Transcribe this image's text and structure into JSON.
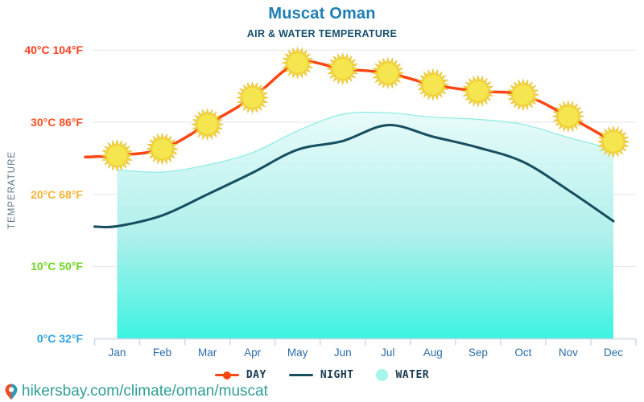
{
  "header": {
    "title": "Muscat Oman",
    "subtitle": "AIR & WATER TEMPERATURE",
    "title_color": "#1E7DB4",
    "subtitle_color": "#17506E"
  },
  "y_axis": {
    "title": "TEMPERATURE",
    "ticks": [
      {
        "label": "40°C 104°F",
        "value": 40,
        "color": "#FB3E1D"
      },
      {
        "label": "30°C 86°F",
        "value": 30,
        "color": "#FB5226"
      },
      {
        "label": "20°C 68°F",
        "value": 20,
        "color": "#F8B435"
      },
      {
        "label": "10°C 50°F",
        "value": 10,
        "color": "#70D51F"
      },
      {
        "label": "0°C 32°F",
        "value": 0,
        "color": "#2FA3E0"
      }
    ]
  },
  "chart_data": {
    "type": "line",
    "title": "Muscat Oman",
    "subtitle": "AIR & WATER TEMPERATURE",
    "ylabel": "TEMPERATURE",
    "ylim": [
      0,
      42
    ],
    "grid": "horizontal",
    "gridline_values": [
      10,
      20,
      30,
      40
    ],
    "legend_position": "bottom",
    "categories": [
      "Jan",
      "Feb",
      "Mar",
      "Apr",
      "May",
      "Jun",
      "Jul",
      "Aug",
      "Sep",
      "Oct",
      "Nov",
      "Dec"
    ],
    "series": [
      {
        "name": "DAY",
        "type": "line",
        "marker": "sun",
        "color": "#FB4713",
        "marker_fill": "#F5E54E",
        "marker_spikes": "#F1D63C",
        "marker_stroke": "#E9BD33",
        "values": [
          25.4,
          26.3,
          29.7,
          33.4,
          38.2,
          37.4,
          36.8,
          35.2,
          34.3,
          33.8,
          30.8,
          27.3
        ]
      },
      {
        "name": "NIGHT",
        "type": "line",
        "marker": "none",
        "color": "#174E60",
        "values": [
          15.6,
          17.1,
          20.0,
          23.0,
          26.2,
          27.4,
          29.6,
          28.0,
          26.5,
          24.5,
          20.6,
          16.3
        ]
      },
      {
        "name": "WATER",
        "type": "area",
        "edge_color": "#8BECE1",
        "fill_top": "#E8FBFA",
        "fill_mid": "#AFF0EB",
        "fill_bottom": "#3DF3E1",
        "values": [
          23.4,
          23.1,
          24.1,
          25.8,
          28.8,
          31.1,
          31.3,
          30.7,
          30.4,
          29.7,
          27.9,
          26.3
        ]
      }
    ],
    "axis_color": "#CCD9E5",
    "gridline_color": "#E4E4E4",
    "month_label_color": "#2B6CAB"
  },
  "legend": {
    "items": [
      {
        "label": "DAY",
        "marker": "line-dot",
        "color": "#FB4713"
      },
      {
        "label": "NIGHT",
        "marker": "line",
        "color": "#174E60"
      },
      {
        "label": "WATER",
        "marker": "circle",
        "color": "#A5F6EA"
      }
    ]
  },
  "footer": {
    "url": "hikersbay.com/climate/oman/muscat",
    "url_color": "#2F9E95",
    "icon": "location-pin-icon",
    "pin_body_color": "#EF4A23",
    "pin_tip_color": "#2E9BB5"
  }
}
